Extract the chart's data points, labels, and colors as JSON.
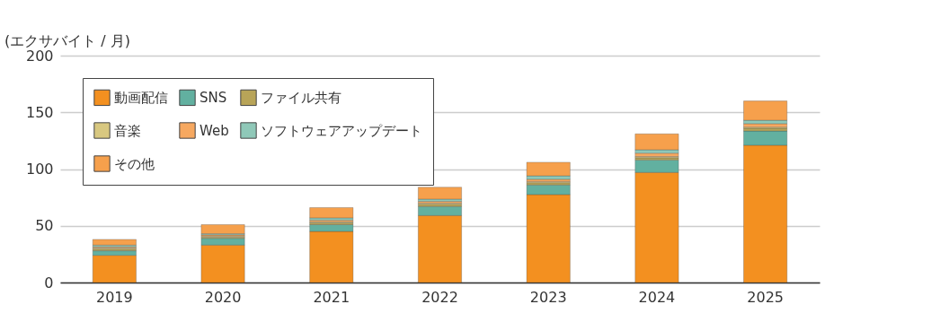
{
  "chart_data": {
    "type": "bar",
    "ylabel": "(エクサバイト / 月)",
    "categories": [
      "2019",
      "2020",
      "2021",
      "2022",
      "2023",
      "2024",
      "2025"
    ],
    "stacked": true,
    "series": [
      {
        "name": "動画配信",
        "color": "#f39020",
        "values": [
          24,
          33,
          45,
          59,
          77.5,
          97,
          121
        ]
      },
      {
        "name": "SNS",
        "color": "#62b0a0",
        "values": [
          4,
          6,
          6,
          8,
          8.5,
          11,
          12.5
        ]
      },
      {
        "name": "ファイル共有",
        "color": "#b8a458",
        "values": [
          1.5,
          1,
          1.5,
          2,
          2,
          2,
          2.5
        ]
      },
      {
        "name": "音楽",
        "color": "#d8c880",
        "values": [
          1,
          1,
          1,
          1,
          1,
          1,
          1
        ]
      },
      {
        "name": "Web",
        "color": "#f6a860",
        "values": [
          1,
          1,
          1.5,
          1.5,
          2,
          3,
          3
        ]
      },
      {
        "name": "ソフトウェアアップデート",
        "color": "#8fc8b8",
        "values": [
          1.5,
          1,
          2,
          2,
          3,
          3,
          3
        ]
      },
      {
        "name": "その他",
        "color": "#f6a04c",
        "values": [
          5,
          8,
          9,
          10.5,
          12,
          14,
          17
        ]
      }
    ],
    "ylim": [
      0,
      200
    ],
    "yticks": [
      0,
      50,
      100,
      150,
      200
    ],
    "grid": "y",
    "legend": "top left"
  }
}
